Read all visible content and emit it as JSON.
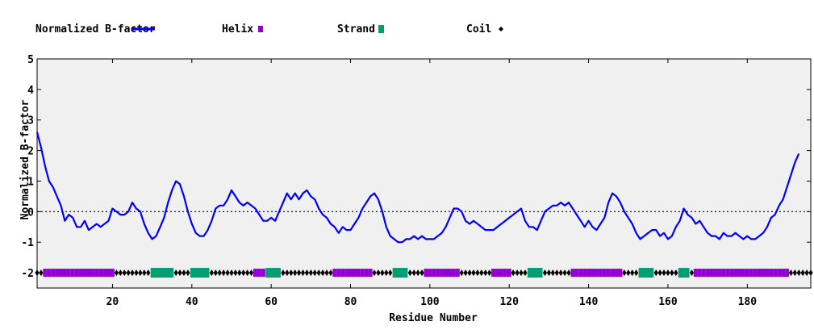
{
  "chart_data": {
    "type": "line",
    "title": "",
    "xlabel": "Residue Number",
    "ylabel": "Normalized B-factor",
    "xlim": [
      1,
      196
    ],
    "ylim": [
      -2.5,
      5
    ],
    "x_ticks": [
      20,
      40,
      60,
      80,
      100,
      120,
      140,
      160,
      180
    ],
    "y_ticks": [
      -2,
      -1,
      0,
      1,
      2,
      3,
      4,
      5
    ],
    "zero_line": true,
    "grid": false,
    "legend_position": "top",
    "colors": {
      "bfactor_line": "#0000ff",
      "helix": "#9400d3",
      "strand": "#009e73",
      "coil": "#000000",
      "plot_background": "#f0f0f0"
    },
    "legend": [
      {
        "label": "Normalized B-factor",
        "symbol": "line"
      },
      {
        "label": "Helix",
        "symbol": "helix-marker"
      },
      {
        "label": "Strand",
        "symbol": "strand-marker"
      },
      {
        "label": "Coil",
        "symbol": "coil-marker"
      }
    ],
    "series": [
      {
        "name": "Normalized B-factor",
        "points": [
          [
            1,
            2.6
          ],
          [
            2,
            2.1
          ],
          [
            3,
            1.5
          ],
          [
            4,
            1.0
          ],
          [
            5,
            0.8
          ],
          [
            6,
            0.5
          ],
          [
            7,
            0.2
          ],
          [
            8,
            -0.3
          ],
          [
            9,
            -0.1
          ],
          [
            10,
            -0.2
          ],
          [
            11,
            -0.5
          ],
          [
            12,
            -0.5
          ],
          [
            13,
            -0.3
          ],
          [
            14,
            -0.6
          ],
          [
            15,
            -0.5
          ],
          [
            16,
            -0.4
          ],
          [
            17,
            -0.5
          ],
          [
            18,
            -0.4
          ],
          [
            19,
            -0.3
          ],
          [
            20,
            0.1
          ],
          [
            21,
            0.0
          ],
          [
            22,
            -0.1
          ],
          [
            23,
            -0.1
          ],
          [
            24,
            0.0
          ],
          [
            25,
            0.3
          ],
          [
            26,
            0.1
          ],
          [
            27,
            0.0
          ],
          [
            28,
            -0.4
          ],
          [
            29,
            -0.7
          ],
          [
            30,
            -0.9
          ],
          [
            31,
            -0.8
          ],
          [
            32,
            -0.5
          ],
          [
            33,
            -0.2
          ],
          [
            34,
            0.3
          ],
          [
            35,
            0.7
          ],
          [
            36,
            1.0
          ],
          [
            37,
            0.9
          ],
          [
            38,
            0.5
          ],
          [
            39,
            0.0
          ],
          [
            40,
            -0.4
          ],
          [
            41,
            -0.7
          ],
          [
            42,
            -0.8
          ],
          [
            43,
            -0.8
          ],
          [
            44,
            -0.6
          ],
          [
            45,
            -0.3
          ],
          [
            46,
            0.1
          ],
          [
            47,
            0.2
          ],
          [
            48,
            0.2
          ],
          [
            49,
            0.4
          ],
          [
            50,
            0.7
          ],
          [
            51,
            0.5
          ],
          [
            52,
            0.3
          ],
          [
            53,
            0.2
          ],
          [
            54,
            0.3
          ],
          [
            55,
            0.2
          ],
          [
            56,
            0.1
          ],
          [
            57,
            -0.1
          ],
          [
            58,
            -0.3
          ],
          [
            59,
            -0.3
          ],
          [
            60,
            -0.2
          ],
          [
            61,
            -0.3
          ],
          [
            62,
            0.0
          ],
          [
            63,
            0.3
          ],
          [
            64,
            0.6
          ],
          [
            65,
            0.4
          ],
          [
            66,
            0.6
          ],
          [
            67,
            0.4
          ],
          [
            68,
            0.6
          ],
          [
            69,
            0.7
          ],
          [
            70,
            0.5
          ],
          [
            71,
            0.4
          ],
          [
            72,
            0.1
          ],
          [
            73,
            -0.1
          ],
          [
            74,
            -0.2
          ],
          [
            75,
            -0.4
          ],
          [
            76,
            -0.5
          ],
          [
            77,
            -0.7
          ],
          [
            78,
            -0.5
          ],
          [
            79,
            -0.6
          ],
          [
            80,
            -0.6
          ],
          [
            81,
            -0.4
          ],
          [
            82,
            -0.2
          ],
          [
            83,
            0.1
          ],
          [
            84,
            0.3
          ],
          [
            85,
            0.5
          ],
          [
            86,
            0.6
          ],
          [
            87,
            0.4
          ],
          [
            88,
            0.0
          ],
          [
            89,
            -0.5
          ],
          [
            90,
            -0.8
          ],
          [
            91,
            -0.9
          ],
          [
            92,
            -1.0
          ],
          [
            93,
            -1.0
          ],
          [
            94,
            -0.9
          ],
          [
            95,
            -0.9
          ],
          [
            96,
            -0.8
          ],
          [
            97,
            -0.9
          ],
          [
            98,
            -0.8
          ],
          [
            99,
            -0.9
          ],
          [
            100,
            -0.9
          ],
          [
            101,
            -0.9
          ],
          [
            102,
            -0.8
          ],
          [
            103,
            -0.7
          ],
          [
            104,
            -0.5
          ],
          [
            105,
            -0.2
          ],
          [
            106,
            0.1
          ],
          [
            107,
            0.1
          ],
          [
            108,
            0.0
          ],
          [
            109,
            -0.3
          ],
          [
            110,
            -0.4
          ],
          [
            111,
            -0.3
          ],
          [
            112,
            -0.4
          ],
          [
            113,
            -0.5
          ],
          [
            114,
            -0.6
          ],
          [
            115,
            -0.6
          ],
          [
            116,
            -0.6
          ],
          [
            117,
            -0.5
          ],
          [
            118,
            -0.4
          ],
          [
            119,
            -0.3
          ],
          [
            120,
            -0.2
          ],
          [
            121,
            -0.1
          ],
          [
            122,
            0.0
          ],
          [
            123,
            0.1
          ],
          [
            124,
            -0.3
          ],
          [
            125,
            -0.5
          ],
          [
            126,
            -0.5
          ],
          [
            127,
            -0.6
          ],
          [
            128,
            -0.3
          ],
          [
            129,
            0.0
          ],
          [
            130,
            0.1
          ],
          [
            131,
            0.2
          ],
          [
            132,
            0.2
          ],
          [
            133,
            0.3
          ],
          [
            134,
            0.2
          ],
          [
            135,
            0.3
          ],
          [
            136,
            0.1
          ],
          [
            137,
            -0.1
          ],
          [
            138,
            -0.3
          ],
          [
            139,
            -0.5
          ],
          [
            140,
            -0.3
          ],
          [
            141,
            -0.5
          ],
          [
            142,
            -0.6
          ],
          [
            143,
            -0.4
          ],
          [
            144,
            -0.2
          ],
          [
            145,
            0.3
          ],
          [
            146,
            0.6
          ],
          [
            147,
            0.5
          ],
          [
            148,
            0.3
          ],
          [
            149,
            0.0
          ],
          [
            150,
            -0.2
          ],
          [
            151,
            -0.4
          ],
          [
            152,
            -0.7
          ],
          [
            153,
            -0.9
          ],
          [
            154,
            -0.8
          ],
          [
            155,
            -0.7
          ],
          [
            156,
            -0.6
          ],
          [
            157,
            -0.6
          ],
          [
            158,
            -0.8
          ],
          [
            159,
            -0.7
          ],
          [
            160,
            -0.9
          ],
          [
            161,
            -0.8
          ],
          [
            162,
            -0.5
          ],
          [
            163,
            -0.3
          ],
          [
            164,
            0.1
          ],
          [
            165,
            -0.1
          ],
          [
            166,
            -0.2
          ],
          [
            167,
            -0.4
          ],
          [
            168,
            -0.3
          ],
          [
            169,
            -0.5
          ],
          [
            170,
            -0.7
          ],
          [
            171,
            -0.8
          ],
          [
            172,
            -0.8
          ],
          [
            173,
            -0.9
          ],
          [
            174,
            -0.7
          ],
          [
            175,
            -0.8
          ],
          [
            176,
            -0.8
          ],
          [
            177,
            -0.7
          ],
          [
            178,
            -0.8
          ],
          [
            179,
            -0.9
          ],
          [
            180,
            -0.8
          ],
          [
            181,
            -0.9
          ],
          [
            182,
            -0.9
          ],
          [
            183,
            -0.8
          ],
          [
            184,
            -0.7
          ],
          [
            185,
            -0.5
          ],
          [
            186,
            -0.2
          ],
          [
            187,
            -0.1
          ],
          [
            188,
            0.2
          ],
          [
            189,
            0.4
          ],
          [
            190,
            0.8
          ],
          [
            191,
            1.2
          ],
          [
            192,
            1.6
          ],
          [
            193,
            1.9
          ]
        ]
      }
    ],
    "secondary_structure": {
      "y": -2,
      "segments": [
        {
          "type": "coil",
          "start": 1,
          "end": 2
        },
        {
          "type": "helix",
          "start": 3,
          "end": 20
        },
        {
          "type": "coil",
          "start": 21,
          "end": 29
        },
        {
          "type": "strand",
          "start": 30,
          "end": 35
        },
        {
          "type": "coil",
          "start": 36,
          "end": 39
        },
        {
          "type": "strand",
          "start": 40,
          "end": 44
        },
        {
          "type": "coil",
          "start": 45,
          "end": 55
        },
        {
          "type": "helix",
          "start": 56,
          "end": 58
        },
        {
          "type": "strand",
          "start": 59,
          "end": 62
        },
        {
          "type": "coil",
          "start": 63,
          "end": 75
        },
        {
          "type": "helix",
          "start": 76,
          "end": 85
        },
        {
          "type": "coil",
          "start": 86,
          "end": 90
        },
        {
          "type": "strand",
          "start": 91,
          "end": 94
        },
        {
          "type": "coil",
          "start": 95,
          "end": 98
        },
        {
          "type": "helix",
          "start": 99,
          "end": 107
        },
        {
          "type": "coil",
          "start": 108,
          "end": 115
        },
        {
          "type": "helix",
          "start": 116,
          "end": 120
        },
        {
          "type": "coil",
          "start": 121,
          "end": 124
        },
        {
          "type": "strand",
          "start": 125,
          "end": 128
        },
        {
          "type": "coil",
          "start": 129,
          "end": 135
        },
        {
          "type": "helix",
          "start": 136,
          "end": 148
        },
        {
          "type": "coil",
          "start": 149,
          "end": 152
        },
        {
          "type": "strand",
          "start": 153,
          "end": 156
        },
        {
          "type": "coil",
          "start": 157,
          "end": 162
        },
        {
          "type": "strand",
          "start": 163,
          "end": 165
        },
        {
          "type": "coil",
          "start": 166,
          "end": 166
        },
        {
          "type": "helix",
          "start": 167,
          "end": 190
        },
        {
          "type": "coil",
          "start": 191,
          "end": 196
        }
      ]
    }
  }
}
